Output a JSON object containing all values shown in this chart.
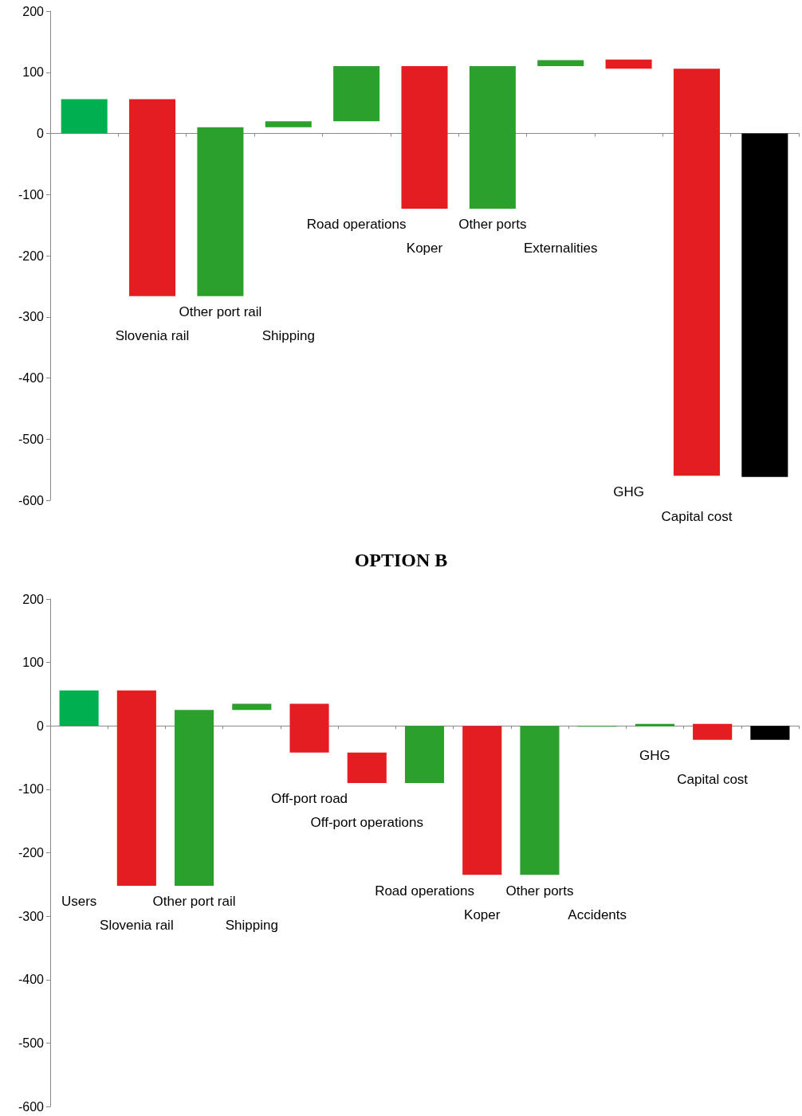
{
  "chart_data": [
    {
      "type": "bar",
      "categories": [
        null,
        "Slovenia rail",
        "Other port rail",
        "Shipping",
        "Road operations",
        "Koper",
        "Other ports",
        "Externalities",
        "GHG",
        "Capital cost",
        null
      ],
      "base": [
        0,
        56,
        -266,
        10,
        20,
        110,
        -123,
        110,
        121,
        106,
        0
      ],
      "values": [
        56,
        -322,
        276,
        10,
        90,
        -233,
        233,
        10,
        -15,
        -666,
        -562
      ],
      "colors": [
        "#00b050",
        "#e41e20",
        "#2ca02c",
        "#2ca02c",
        "#2ca02c",
        "#e41e20",
        "#2ca02c",
        "#2ca02c",
        "#e41e20",
        "#e41e20",
        "#000000"
      ],
      "ylim": [
        -600,
        200
      ],
      "yticks": [
        -600,
        -500,
        -400,
        -300,
        -200,
        -100,
        0,
        100,
        200
      ]
    },
    {
      "type": "bar",
      "title": "OPTION B",
      "categories": [
        "Users",
        "Slovenia rail",
        "Other port rail",
        "Shipping",
        "Off-port road",
        "Off-port operations",
        "Road operations",
        "Koper",
        "Other ports",
        "Accidents",
        "GHG",
        "Capital cost",
        null
      ],
      "base": [
        0,
        56,
        -252,
        25,
        35,
        -42,
        -90,
        0,
        -235,
        0,
        -1,
        3,
        0
      ],
      "values": [
        56,
        -308,
        277,
        10,
        -77,
        -48,
        90,
        -235,
        235,
        -1,
        4,
        -25,
        -22
      ],
      "colors": [
        "#00b050",
        "#e41e20",
        "#2ca02c",
        "#2ca02c",
        "#e41e20",
        "#e41e20",
        "#2ca02c",
        "#e41e20",
        "#2ca02c",
        "#2ca02c",
        "#2ca02c",
        "#e41e20",
        "#000000"
      ],
      "ylim": [
        -600,
        200
      ],
      "yticks": [
        -600,
        -500,
        -400,
        -300,
        -200,
        -100,
        0,
        100,
        200
      ]
    }
  ]
}
